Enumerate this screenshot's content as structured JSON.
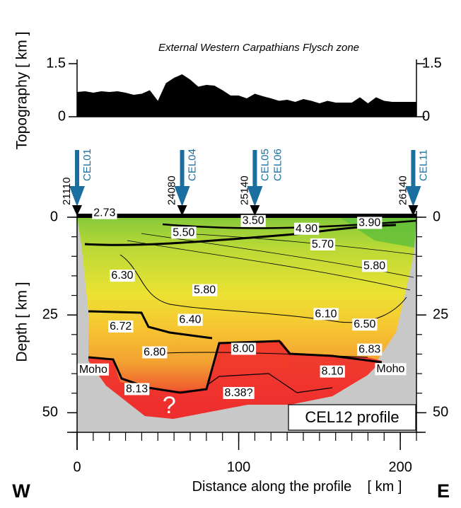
{
  "chart_data": [
    {
      "type": "area",
      "title": "External Western Carpathians Flysch zone",
      "y_label": "Topography [ km ]",
      "xlim": [
        0,
        210
      ],
      "ylim": [
        0,
        1.5
      ],
      "yticks": [
        0,
        1.5
      ],
      "color": "#000000",
      "x": [
        0,
        5,
        10,
        15,
        20,
        25,
        30,
        35,
        40,
        45,
        50,
        55,
        60,
        65,
        70,
        75,
        80,
        85,
        90,
        95,
        100,
        105,
        110,
        115,
        120,
        125,
        130,
        135,
        140,
        145,
        150,
        155,
        160,
        165,
        170,
        175,
        180,
        185,
        190,
        195,
        200,
        205,
        210
      ],
      "values": [
        0.7,
        0.72,
        0.68,
        0.72,
        0.7,
        0.72,
        0.68,
        0.62,
        0.65,
        0.75,
        0.45,
        0.95,
        1.1,
        1.2,
        1.05,
        0.85,
        0.9,
        0.88,
        0.75,
        0.6,
        0.6,
        0.52,
        0.65,
        0.58,
        0.52,
        0.45,
        0.48,
        0.42,
        0.5,
        0.45,
        0.38,
        0.45,
        0.4,
        0.4,
        0.4,
        0.55,
        0.38,
        0.55,
        0.45,
        0.42,
        0.42,
        0.42,
        0.42
      ]
    },
    {
      "type": "profile",
      "y_label": "Depth [ km ]",
      "x_label": "Distance along the profile    [ km ]",
      "west": "W",
      "east": "E",
      "xlim": [
        0,
        210
      ],
      "ylim": [
        0,
        55
      ],
      "inverted": true,
      "xticks": [
        0,
        100,
        200
      ],
      "yticks": [
        0,
        25,
        50
      ],
      "xminor_ticks": [
        0,
        10,
        20,
        30,
        40,
        50,
        60,
        70,
        80,
        90,
        100,
        110,
        120,
        130,
        140,
        150,
        160,
        170,
        180,
        190,
        200,
        210
      ],
      "yminor_ticks": [
        0,
        5,
        10,
        15,
        20,
        25,
        30,
        35,
        40,
        45,
        50,
        55
      ],
      "profile_label": "CEL12 profile",
      "shots": [
        {
          "names": [
            "CEL01"
          ],
          "number": 21110,
          "x": 0
        },
        {
          "names": [
            "CEL04"
          ],
          "number": 24080,
          "x": 65
        },
        {
          "names": [
            "CEL05",
            "CEL06"
          ],
          "number": 25140,
          "x": 110
        },
        {
          "names": [
            "CEL11"
          ],
          "number": 26140,
          "x": 208
        }
      ],
      "labels": [
        {
          "text": "2.73",
          "x": 17,
          "y": -1
        },
        {
          "text": "3.50",
          "x": 109,
          "y": 1
        },
        {
          "text": "3.90",
          "x": 181,
          "y": 1.5
        },
        {
          "text": "5.50",
          "x": 66,
          "y": 4
        },
        {
          "text": "4.90",
          "x": 142,
          "y": 3
        },
        {
          "text": "5.70",
          "x": 152,
          "y": 7
        },
        {
          "text": "5.80",
          "x": 184,
          "y": 12.5
        },
        {
          "text": "6.30",
          "x": 28,
          "y": 15
        },
        {
          "text": "5.80",
          "x": 79,
          "y": 18.7
        },
        {
          "text": "6.10",
          "x": 154,
          "y": 24.8
        },
        {
          "text": "6.50",
          "x": 178,
          "y": 27.5
        },
        {
          "text": "6.40",
          "x": 70,
          "y": 26.3
        },
        {
          "text": "6.72",
          "x": 27,
          "y": 28
        },
        {
          "text": "6.80",
          "x": 48,
          "y": 34.6
        },
        {
          "text": "6.83",
          "x": 181,
          "y": 33.9
        },
        {
          "text": "8.00",
          "x": 103,
          "y": 33.7
        },
        {
          "text": "8.10",
          "x": 158,
          "y": 39.5
        },
        {
          "text": "8.13",
          "x": 37,
          "y": 44
        },
        {
          "text": "8.38?",
          "x": 100,
          "y": 45
        },
        {
          "text": "Moho",
          "x": 10,
          "y": 39
        },
        {
          "text": "Moho",
          "x": 194,
          "y": 38.9
        }
      ],
      "question_mark": {
        "text": "?",
        "x": 57,
        "y": 48.5
      }
    }
  ]
}
